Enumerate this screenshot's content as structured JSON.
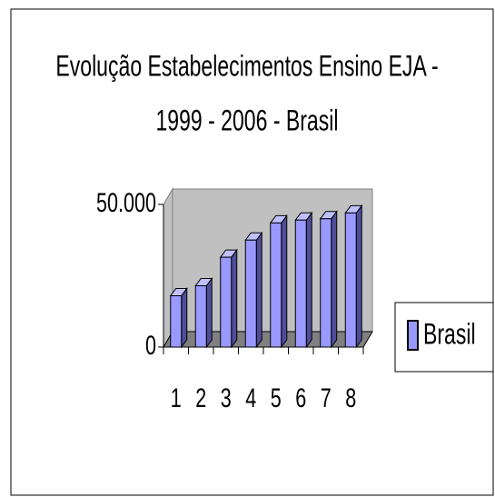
{
  "chart_data": {
    "type": "bar",
    "title": [
      "Evolução Estabelecimentos Ensino EJA -",
      "1999 - 2006 - Brasil"
    ],
    "categories": [
      "1",
      "2",
      "3",
      "4",
      "5",
      "6",
      "7",
      "8"
    ],
    "series": [
      {
        "name": "Brasil",
        "color": "#9999ff",
        "values": [
          18000,
          21500,
          31500,
          37500,
          43500,
          44500,
          45000,
          47000
        ]
      }
    ],
    "ylim": [
      0,
      50000
    ],
    "yticks": [
      0,
      {
        "value": 50000,
        "label": "50.000"
      }
    ],
    "legend": "right"
  }
}
